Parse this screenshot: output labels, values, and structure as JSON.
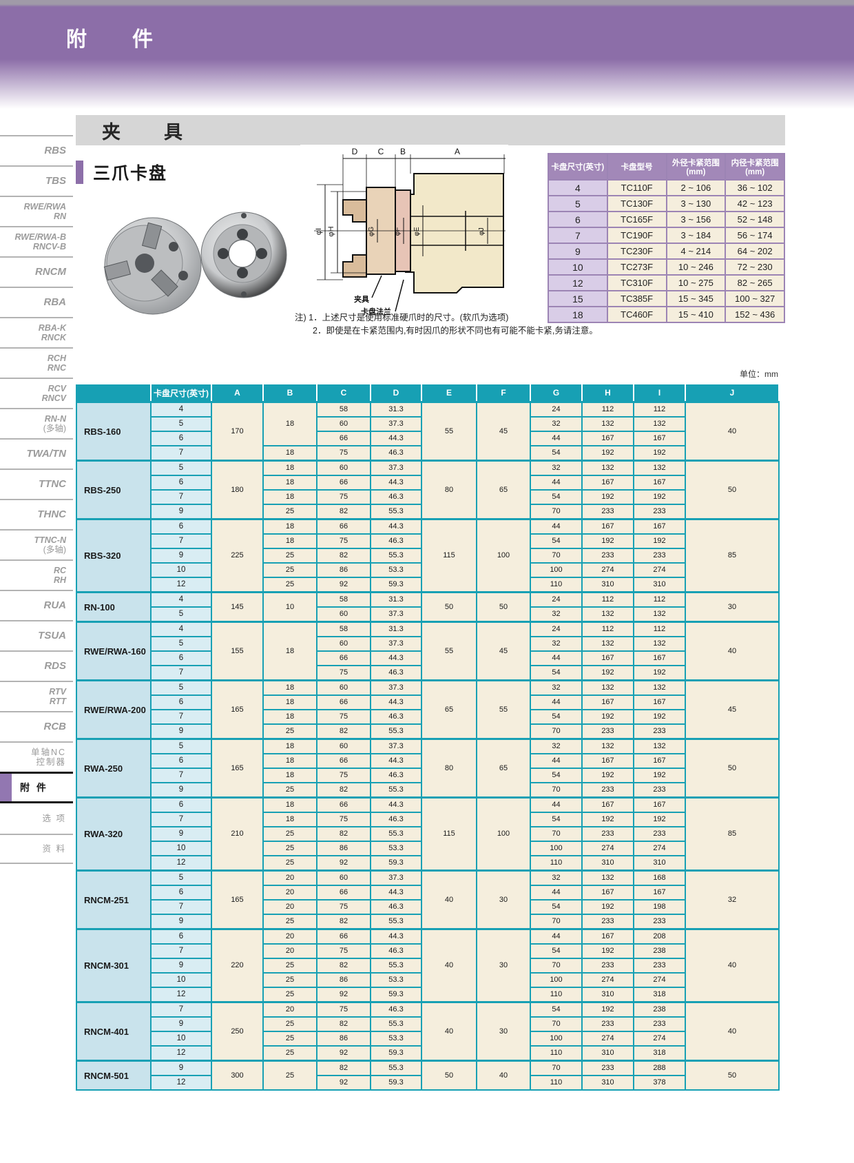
{
  "page": {
    "header_title": "附　件",
    "section_bar_title": "夹　具",
    "subsection_title": "三爪卡盘",
    "unit_label": "单位：mm",
    "notes": {
      "line1": "注) 1．上述尺寸是使用标准硬爪时的尺寸。(软爪为选项)",
      "line2": "2．即使是在卡紧范围内,有时因爪的形状不同也有可能不能卡紧,务请注意。"
    }
  },
  "sidebar": {
    "items": [
      {
        "lines": [
          "RBS"
        ]
      },
      {
        "lines": [
          "TBS"
        ]
      },
      {
        "lines": [
          "RWE/RWA",
          "RN"
        ]
      },
      {
        "lines": [
          "RWE/RWA-B",
          "RNCV-B"
        ]
      },
      {
        "lines": [
          "RNCM"
        ]
      },
      {
        "lines": [
          "RBA"
        ]
      },
      {
        "lines": [
          "RBA-K",
          "RNCK"
        ]
      },
      {
        "lines": [
          "RCH",
          "RNC"
        ]
      },
      {
        "lines": [
          "RCV",
          "RNCV"
        ]
      },
      {
        "lines": [
          "RN-N",
          "(多轴)"
        ]
      },
      {
        "lines": [
          "TWA/TN"
        ]
      },
      {
        "lines": [
          "TTNC"
        ]
      },
      {
        "lines": [
          "THNC"
        ]
      },
      {
        "lines": [
          "TTNC-N",
          "(多轴)"
        ]
      },
      {
        "lines": [
          "RC",
          "RH"
        ]
      },
      {
        "lines": [
          "RUA"
        ]
      },
      {
        "lines": [
          "TSUA"
        ]
      },
      {
        "lines": [
          "RDS"
        ]
      },
      {
        "lines": [
          "RTV",
          "RTT"
        ]
      },
      {
        "lines": [
          "RCB"
        ]
      },
      {
        "lines": [
          "单轴NC",
          "控制器"
        ],
        "cjk": true
      },
      {
        "lines": [
          "附 件"
        ],
        "cjk": true,
        "active": true
      },
      {
        "lines": [
          "选 项"
        ],
        "cjk": true
      },
      {
        "lines": [
          "资 料"
        ],
        "cjk": true
      }
    ]
  },
  "diagram": {
    "dims": [
      "D",
      "C",
      "B",
      "A"
    ],
    "dia_labels": [
      "φI",
      "φH",
      "φG",
      "φF",
      "φE",
      "φJ"
    ],
    "callouts": [
      "夹具",
      "卡盘法兰"
    ]
  },
  "spec_table": {
    "headers": [
      "卡盘尺寸(英寸)",
      "卡盘型号",
      "外径卡紧范围(mm)",
      "内径卡紧范围(mm)"
    ],
    "rows": [
      [
        "4",
        "TC110F",
        "2 ~ 106",
        "36 ~ 102"
      ],
      [
        "5",
        "TC130F",
        "3 ~ 130",
        "42 ~ 123"
      ],
      [
        "6",
        "TC165F",
        "3 ~ 156",
        "52 ~ 148"
      ],
      [
        "7",
        "TC190F",
        "3 ~ 184",
        "56 ~ 174"
      ],
      [
        "9",
        "TC230F",
        "4 ~ 214",
        "64 ~ 202"
      ],
      [
        "10",
        "TC273F",
        "10 ~ 246",
        "72 ~ 230"
      ],
      [
        "12",
        "TC310F",
        "10 ~ 275",
        "82 ~ 265"
      ],
      [
        "15",
        "TC385F",
        "15 ~ 345",
        "100 ~ 327"
      ],
      [
        "18",
        "TC460F",
        "15 ~ 410",
        "152 ~ 436"
      ]
    ]
  },
  "main_table": {
    "headers": [
      "",
      "卡盘尺寸(英寸)",
      "A",
      "B",
      "C",
      "D",
      "E",
      "F",
      "G",
      "H",
      "I",
      "J"
    ],
    "groups": [
      {
        "model": "RBS-160",
        "a": "170",
        "e": "55",
        "f": "45",
        "j": "40",
        "b_spans": [
          {
            "v": "18",
            "s": 3
          },
          {
            "v": "18",
            "s": 1
          }
        ],
        "rows": [
          {
            "size": "4",
            "c": "58",
            "d": "31.3",
            "g": "24",
            "h": "112",
            "i": "112"
          },
          {
            "size": "5",
            "c": "60",
            "d": "37.3",
            "g": "32",
            "h": "132",
            "i": "132"
          },
          {
            "size": "6",
            "c": "66",
            "d": "44.3",
            "g": "44",
            "h": "167",
            "i": "167"
          },
          {
            "size": "7",
            "c": "75",
            "d": "46.3",
            "g": "54",
            "h": "192",
            "i": "192"
          }
        ]
      },
      {
        "model": "RBS-250",
        "a": "180",
        "e": "80",
        "f": "65",
        "j": "50",
        "b_spans": [
          {
            "v": "18",
            "s": 1
          },
          {
            "v": "18",
            "s": 1
          },
          {
            "v": "18",
            "s": 1
          },
          {
            "v": "25",
            "s": 1
          }
        ],
        "rows": [
          {
            "size": "5",
            "c": "60",
            "d": "37.3",
            "g": "32",
            "h": "132",
            "i": "132"
          },
          {
            "size": "6",
            "c": "66",
            "d": "44.3",
            "g": "44",
            "h": "167",
            "i": "167"
          },
          {
            "size": "7",
            "c": "75",
            "d": "46.3",
            "g": "54",
            "h": "192",
            "i": "192"
          },
          {
            "size": "9",
            "c": "82",
            "d": "55.3",
            "g": "70",
            "h": "233",
            "i": "233"
          }
        ]
      },
      {
        "model": "RBS-320",
        "a": "225",
        "e": "115",
        "f": "100",
        "j": "85",
        "b_spans": [
          {
            "v": "18",
            "s": 1
          },
          {
            "v": "18",
            "s": 1
          },
          {
            "v": "25",
            "s": 1
          },
          {
            "v": "25",
            "s": 1
          },
          {
            "v": "25",
            "s": 1
          }
        ],
        "rows": [
          {
            "size": "6",
            "c": "66",
            "d": "44.3",
            "g": "44",
            "h": "167",
            "i": "167"
          },
          {
            "size": "7",
            "c": "75",
            "d": "46.3",
            "g": "54",
            "h": "192",
            "i": "192"
          },
          {
            "size": "9",
            "c": "82",
            "d": "55.3",
            "g": "70",
            "h": "233",
            "i": "233"
          },
          {
            "size": "10",
            "c": "86",
            "d": "53.3",
            "g": "100",
            "h": "274",
            "i": "274"
          },
          {
            "size": "12",
            "c": "92",
            "d": "59.3",
            "g": "110",
            "h": "310",
            "i": "310"
          }
        ]
      },
      {
        "model": "RN-100",
        "a": "145",
        "e": "50",
        "f": "50",
        "j": "30",
        "b_spans": [
          {
            "v": "10",
            "s": 2
          }
        ],
        "rows": [
          {
            "size": "4",
            "c": "58",
            "d": "31.3",
            "g": "24",
            "h": "112",
            "i": "112"
          },
          {
            "size": "5",
            "c": "60",
            "d": "37.3",
            "g": "32",
            "h": "132",
            "i": "132"
          }
        ]
      },
      {
        "model": "RWE/RWA-160",
        "a": "155",
        "e": "55",
        "f": "45",
        "j": "40",
        "b_spans": [
          {
            "v": "18",
            "s": 4
          }
        ],
        "rows": [
          {
            "size": "4",
            "c": "58",
            "d": "31.3",
            "g": "24",
            "h": "112",
            "i": "112"
          },
          {
            "size": "5",
            "c": "60",
            "d": "37.3",
            "g": "32",
            "h": "132",
            "i": "132"
          },
          {
            "size": "6",
            "c": "66",
            "d": "44.3",
            "g": "44",
            "h": "167",
            "i": "167"
          },
          {
            "size": "7",
            "c": "75",
            "d": "46.3",
            "g": "54",
            "h": "192",
            "i": "192"
          }
        ]
      },
      {
        "model": "RWE/RWA-200",
        "a": "165",
        "e": "65",
        "f": "55",
        "j": "45",
        "b_spans": [
          {
            "v": "18",
            "s": 1
          },
          {
            "v": "18",
            "s": 1
          },
          {
            "v": "18",
            "s": 1
          },
          {
            "v": "25",
            "s": 1
          }
        ],
        "rows": [
          {
            "size": "5",
            "c": "60",
            "d": "37.3",
            "g": "32",
            "h": "132",
            "i": "132"
          },
          {
            "size": "6",
            "c": "66",
            "d": "44.3",
            "g": "44",
            "h": "167",
            "i": "167"
          },
          {
            "size": "7",
            "c": "75",
            "d": "46.3",
            "g": "54",
            "h": "192",
            "i": "192"
          },
          {
            "size": "9",
            "c": "82",
            "d": "55.3",
            "g": "70",
            "h": "233",
            "i": "233"
          }
        ]
      },
      {
        "model": "RWA-250",
        "a": "165",
        "e": "80",
        "f": "65",
        "j": "50",
        "b_spans": [
          {
            "v": "18",
            "s": 1
          },
          {
            "v": "18",
            "s": 1
          },
          {
            "v": "18",
            "s": 1
          },
          {
            "v": "25",
            "s": 1
          }
        ],
        "rows": [
          {
            "size": "5",
            "c": "60",
            "d": "37.3",
            "g": "32",
            "h": "132",
            "i": "132"
          },
          {
            "size": "6",
            "c": "66",
            "d": "44.3",
            "g": "44",
            "h": "167",
            "i": "167"
          },
          {
            "size": "7",
            "c": "75",
            "d": "46.3",
            "g": "54",
            "h": "192",
            "i": "192"
          },
          {
            "size": "9",
            "c": "82",
            "d": "55.3",
            "g": "70",
            "h": "233",
            "i": "233"
          }
        ]
      },
      {
        "model": "RWA-320",
        "a": "210",
        "e": "115",
        "f": "100",
        "j": "85",
        "b_spans": [
          {
            "v": "18",
            "s": 1
          },
          {
            "v": "18",
            "s": 1
          },
          {
            "v": "25",
            "s": 1
          },
          {
            "v": "25",
            "s": 1
          },
          {
            "v": "25",
            "s": 1
          }
        ],
        "rows": [
          {
            "size": "6",
            "c": "66",
            "d": "44.3",
            "g": "44",
            "h": "167",
            "i": "167"
          },
          {
            "size": "7",
            "c": "75",
            "d": "46.3",
            "g": "54",
            "h": "192",
            "i": "192"
          },
          {
            "size": "9",
            "c": "82",
            "d": "55.3",
            "g": "70",
            "h": "233",
            "i": "233"
          },
          {
            "size": "10",
            "c": "86",
            "d": "53.3",
            "g": "100",
            "h": "274",
            "i": "274"
          },
          {
            "size": "12",
            "c": "92",
            "d": "59.3",
            "g": "110",
            "h": "310",
            "i": "310"
          }
        ]
      },
      {
        "model": "RNCM-251",
        "a": "165",
        "e": "40",
        "f": "30",
        "j": "32",
        "b_spans": [
          {
            "v": "20",
            "s": 1
          },
          {
            "v": "20",
            "s": 1
          },
          {
            "v": "20",
            "s": 1
          },
          {
            "v": "25",
            "s": 1
          }
        ],
        "rows": [
          {
            "size": "5",
            "c": "60",
            "d": "37.3",
            "g": "32",
            "h": "132",
            "i": "168"
          },
          {
            "size": "6",
            "c": "66",
            "d": "44.3",
            "g": "44",
            "h": "167",
            "i": "167"
          },
          {
            "size": "7",
            "c": "75",
            "d": "46.3",
            "g": "54",
            "h": "192",
            "i": "198"
          },
          {
            "size": "9",
            "c": "82",
            "d": "55.3",
            "g": "70",
            "h": "233",
            "i": "233"
          }
        ]
      },
      {
        "model": "RNCM-301",
        "a": "220",
        "e": "40",
        "f": "30",
        "j": "40",
        "b_spans": [
          {
            "v": "20",
            "s": 1
          },
          {
            "v": "20",
            "s": 1
          },
          {
            "v": "25",
            "s": 1
          },
          {
            "v": "25",
            "s": 1
          },
          {
            "v": "25",
            "s": 1
          }
        ],
        "rows": [
          {
            "size": "6",
            "c": "66",
            "d": "44.3",
            "g": "44",
            "h": "167",
            "i": "208"
          },
          {
            "size": "7",
            "c": "75",
            "d": "46.3",
            "g": "54",
            "h": "192",
            "i": "238"
          },
          {
            "size": "9",
            "c": "82",
            "d": "55.3",
            "g": "70",
            "h": "233",
            "i": "233"
          },
          {
            "size": "10",
            "c": "86",
            "d": "53.3",
            "g": "100",
            "h": "274",
            "i": "274"
          },
          {
            "size": "12",
            "c": "92",
            "d": "59.3",
            "g": "110",
            "h": "310",
            "i": "318"
          }
        ]
      },
      {
        "model": "RNCM-401",
        "a": "250",
        "e": "40",
        "f": "30",
        "j": "40",
        "b_spans": [
          {
            "v": "20",
            "s": 1
          },
          {
            "v": "25",
            "s": 1
          },
          {
            "v": "25",
            "s": 1
          },
          {
            "v": "25",
            "s": 1
          }
        ],
        "rows": [
          {
            "size": "7",
            "c": "75",
            "d": "46.3",
            "g": "54",
            "h": "192",
            "i": "238"
          },
          {
            "size": "9",
            "c": "82",
            "d": "55.3",
            "g": "70",
            "h": "233",
            "i": "233"
          },
          {
            "size": "10",
            "c": "86",
            "d": "53.3",
            "g": "100",
            "h": "274",
            "i": "274"
          },
          {
            "size": "12",
            "c": "92",
            "d": "59.3",
            "g": "110",
            "h": "310",
            "i": "318"
          }
        ]
      },
      {
        "model": "RNCM-501",
        "a": "300",
        "e": "50",
        "f": "40",
        "j": "50",
        "b_spans": [
          {
            "v": "25",
            "s": 2
          }
        ],
        "rows": [
          {
            "size": "9",
            "c": "82",
            "d": "55.3",
            "g": "70",
            "h": "233",
            "i": "288"
          },
          {
            "size": "12",
            "c": "92",
            "d": "59.3",
            "g": "110",
            "h": "310",
            "i": "378"
          }
        ]
      }
    ]
  },
  "colors": {
    "accent_purple": "#8c6ea8",
    "table_teal": "#17a0b4",
    "table_purple": "#a288b8",
    "cream": "#f5eedd",
    "model_blue": "#c9e3ec",
    "size_blue": "#d9edf3",
    "lavender": "#d9cde7"
  }
}
